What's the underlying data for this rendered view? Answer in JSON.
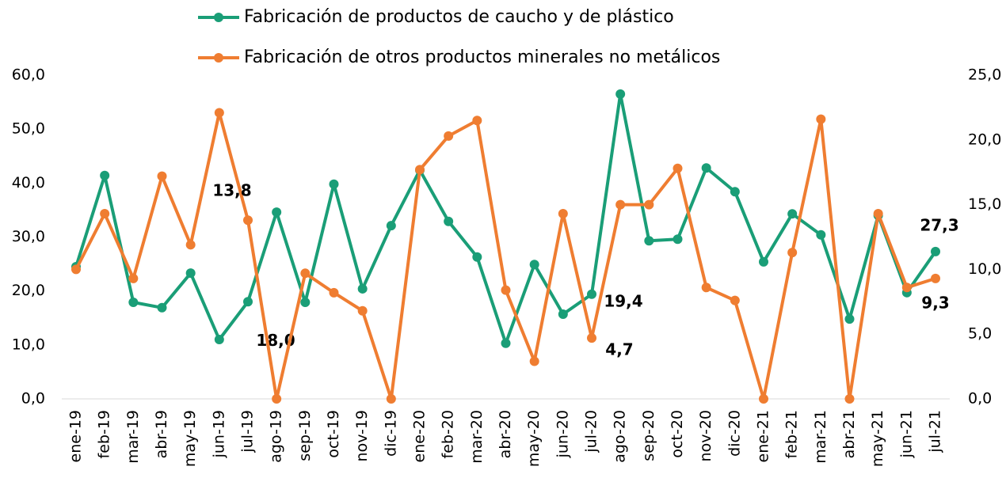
{
  "chart_data": {
    "type": "line",
    "categories": [
      "ene-19",
      "feb-19",
      "mar-19",
      "abr-19",
      "may-19",
      "jun-19",
      "jul-19",
      "ago-19",
      "sep-19",
      "oct-19",
      "nov-19",
      "dic-19",
      "ene-20",
      "feb-20",
      "mar-20",
      "abr-20",
      "may-20",
      "jun-20",
      "jul-20",
      "ago-20",
      "sep-20",
      "oct-20",
      "nov-20",
      "dic-20",
      "ene-21",
      "feb-21",
      "mar-21",
      "abr-21",
      "may-21",
      "jun-21",
      "jul-21"
    ],
    "series": [
      {
        "name": "Fabricación de productos de caucho y de plástico",
        "color": "#1a9e77",
        "values": [
          24.5,
          41.4,
          17.9,
          16.9,
          23.3,
          11.0,
          18.0,
          34.6,
          17.9,
          39.8,
          20.4,
          32.1,
          42.4,
          32.9,
          26.3,
          10.3,
          24.9,
          15.7,
          19.4,
          56.5,
          29.3,
          29.6,
          42.8,
          38.4,
          25.4,
          34.3,
          30.4,
          14.8,
          34.0,
          19.7,
          27.3
        ],
        "value_labels": [
          null,
          null,
          null,
          null,
          null,
          null,
          "18,0",
          null,
          null,
          null,
          null,
          null,
          null,
          null,
          null,
          null,
          null,
          null,
          "19,4",
          null,
          null,
          null,
          null,
          null,
          null,
          null,
          null,
          null,
          null,
          null,
          "27,3"
        ]
      },
      {
        "name": "Fabricación de otros productos minerales no metálicos",
        "color": "#ef7d31",
        "axis": "y2",
        "values": [
          10.0,
          14.3,
          9.3,
          17.2,
          11.9,
          22.1,
          13.8,
          0,
          9.7,
          8.2,
          6.8,
          0,
          17.7,
          20.3,
          21.5,
          8.4,
          2.9,
          14.3,
          4.7,
          15.0,
          15.0,
          17.8,
          8.6,
          7.6,
          0,
          11.3,
          21.6,
          0,
          14.3,
          8.6,
          9.3
        ],
        "value_labels": [
          null,
          null,
          null,
          null,
          null,
          null,
          "13,8",
          null,
          null,
          null,
          null,
          null,
          null,
          null,
          null,
          null,
          null,
          null,
          "4,7",
          null,
          null,
          null,
          null,
          null,
          null,
          null,
          null,
          null,
          null,
          null,
          "9,3"
        ]
      }
    ],
    "ylim": [
      0,
      60
    ],
    "yticks": [
      {
        "value": 0,
        "label": "0,0"
      },
      {
        "value": 10,
        "label": "10,0"
      },
      {
        "value": 20,
        "label": "20,0"
      },
      {
        "value": 30,
        "label": "30,0"
      },
      {
        "value": 40,
        "label": "40,0"
      },
      {
        "value": 50,
        "label": "50,0"
      },
      {
        "value": 60,
        "label": "60,0"
      }
    ],
    "y2lim": [
      0,
      25
    ],
    "y2ticks": [
      {
        "value": 0,
        "label": "0,0"
      },
      {
        "value": 5,
        "label": "5,0"
      },
      {
        "value": 10,
        "label": "10,0"
      },
      {
        "value": 15,
        "label": "15,0"
      },
      {
        "value": 20,
        "label": "20,0"
      },
      {
        "value": 25,
        "label": "25,0"
      }
    ],
    "legend": "top"
  }
}
